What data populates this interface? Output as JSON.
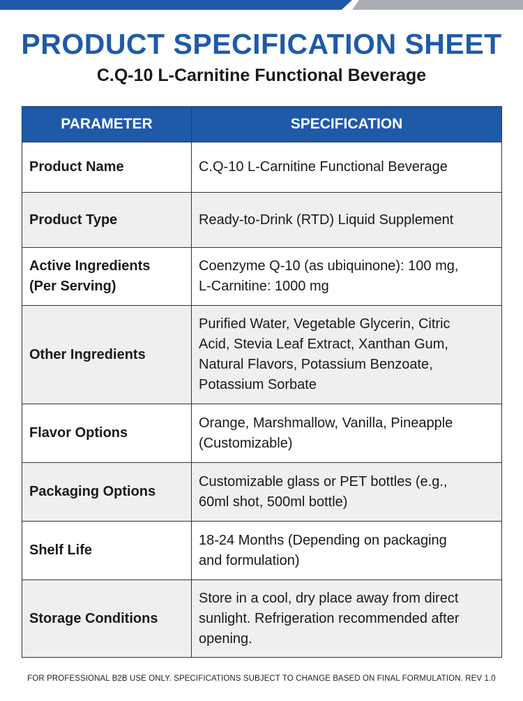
{
  "header": {
    "title": "PRODUCT SPECIFICATION SHEET",
    "subtitle": "C.Q-10 L-Carnitine Functional Beverage"
  },
  "colors": {
    "accent": "#1f5aa8",
    "stripe_gray": "#a9adb3",
    "row_alt": "#efefef"
  },
  "table": {
    "columns": [
      "PARAMETER",
      "SPECIFICATION"
    ],
    "rows": [
      {
        "parameter": [
          "Product Name"
        ],
        "specification": [
          "C.Q-10 L-Carnitine Functional Beverage"
        ]
      },
      {
        "parameter": [
          "Product Type"
        ],
        "specification": [
          "Ready-to-Drink (RTD) Liquid Supplement"
        ]
      },
      {
        "parameter": [
          "Active Ingredients",
          "(Per Serving)"
        ],
        "specification": [
          "Coenzyme Q-10 (as ubiquinone): 100 mg,",
          "L-Carnitine: 1000 mg"
        ]
      },
      {
        "parameter": [
          "Other Ingredients"
        ],
        "specification": [
          "Purified Water, Vegetable Glycerin, Citric",
          "Acid, Stevia Leaf Extract, Xanthan Gum,",
          "Natural Flavors, Potassium Benzoate,",
          "Potassium Sorbate"
        ]
      },
      {
        "parameter": [
          "Flavor Options"
        ],
        "specification": [
          "Orange, Marshmallow, Vanilla, Pineapple",
          "(Customizable)"
        ]
      },
      {
        "parameter": [
          "Packaging Options"
        ],
        "specification": [
          "Customizable glass or PET bottles (e.g.,",
          "60ml shot, 500ml bottle)"
        ]
      },
      {
        "parameter": [
          "Shelf Life"
        ],
        "specification": [
          "18-24 Months (Depending on packaging",
          "and formulation)"
        ]
      },
      {
        "parameter": [
          "Storage Conditions"
        ],
        "specification": [
          "Store in a cool, dry place away from direct",
          "sunlight. Refrigeration recommended after",
          "opening."
        ]
      }
    ]
  },
  "footer": {
    "note": "FOR PROFESSIONAL B2B USE ONLY. SPECIFICATIONS SUBJECT TO CHANGE BASED ON FINAL FORMULATION. REV 1.0"
  }
}
